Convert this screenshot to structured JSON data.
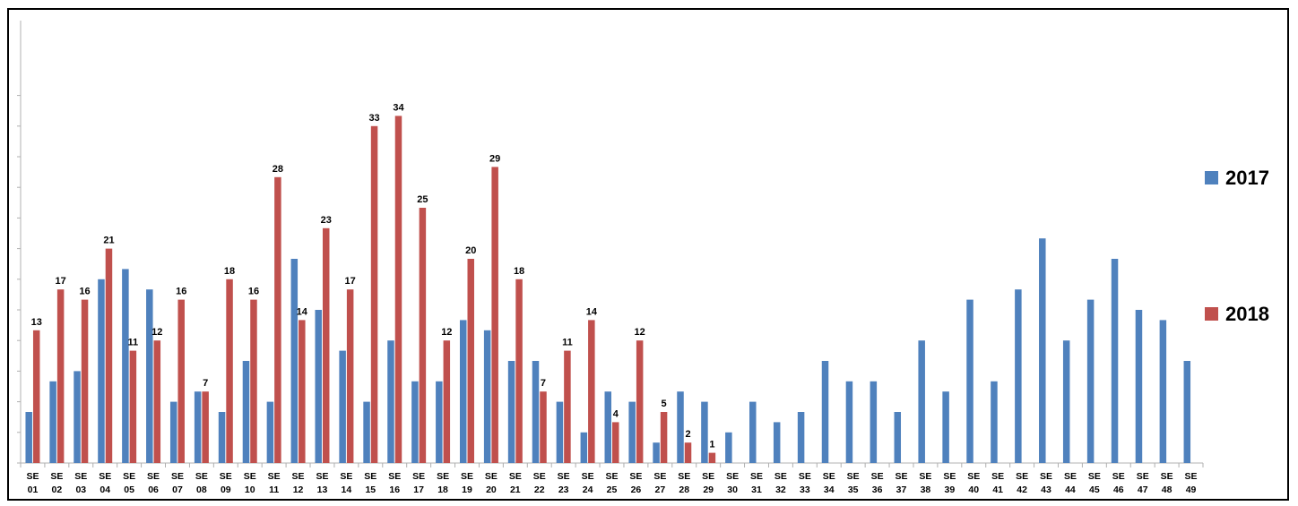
{
  "chart_data": {
    "type": "bar",
    "title": "",
    "xlabel": "",
    "ylabel": "",
    "ylim": [
      0,
      37
    ],
    "grid": false,
    "legend": "right",
    "categories": [
      "SE 01",
      "SE 02",
      "SE 03",
      "SE 04",
      "SE 05",
      "SE 06",
      "SE 07",
      "SE 08",
      "SE 09",
      "SE 10",
      "SE 11",
      "SE 12",
      "SE 13",
      "SE 14",
      "SE 15",
      "SE 16",
      "SE 17",
      "SE 18",
      "SE 19",
      "SE 20",
      "SE 21",
      "SE 22",
      "SE 23",
      "SE 24",
      "SE 25",
      "SE 26",
      "SE 27",
      "SE 28",
      "SE 29",
      "SE 30",
      "SE 31",
      "SE 32",
      "SE 33",
      "SE 34",
      "SE 35",
      "SE 36",
      "SE 37",
      "SE 38",
      "SE 39",
      "SE 40",
      "SE 41",
      "SE 42",
      "SE 43",
      "SE 44",
      "SE 45",
      "SE 46",
      "SE 47",
      "SE 48",
      "SE 49"
    ],
    "series": [
      {
        "name": "2017",
        "color": "#4f81bd",
        "show_labels": false,
        "values": [
          5,
          8,
          9,
          18,
          19,
          17,
          6,
          7,
          5,
          10,
          6,
          20,
          15,
          11,
          6,
          12,
          8,
          8,
          14,
          13,
          10,
          10,
          6,
          3,
          7,
          6,
          2,
          7,
          6,
          3,
          6,
          4,
          5,
          10,
          8,
          8,
          5,
          12,
          7,
          16,
          8,
          17,
          22,
          12,
          16,
          20,
          15,
          14,
          10
        ]
      },
      {
        "name": "2018",
        "color": "#c0504d",
        "show_labels": true,
        "values": [
          13,
          17,
          16,
          21,
          11,
          12,
          16,
          7,
          18,
          16,
          28,
          14,
          23,
          17,
          33,
          34,
          25,
          12,
          20,
          29,
          18,
          7,
          11,
          14,
          4,
          12,
          5,
          2,
          1,
          null,
          null,
          null,
          null,
          null,
          null,
          null,
          null,
          null,
          null,
          null,
          null,
          null,
          null,
          null,
          null,
          null,
          null,
          null,
          null
        ]
      }
    ]
  }
}
